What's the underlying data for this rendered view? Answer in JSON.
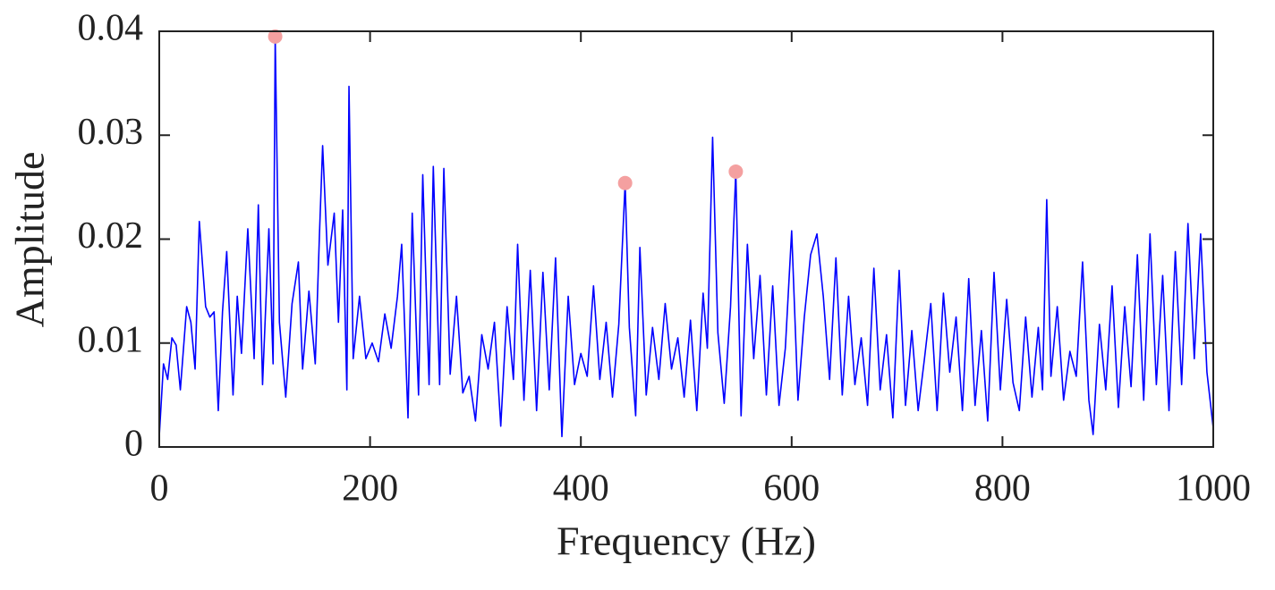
{
  "chart_data": {
    "type": "line",
    "xlabel": "Frequency (Hz)",
    "ylabel": "Amplitude",
    "xlim": [
      0,
      1000
    ],
    "ylim": [
      0,
      0.04
    ],
    "xticks": [
      0,
      200,
      400,
      600,
      800,
      1000
    ],
    "yticks": [
      0,
      0.01,
      0.02,
      0.03,
      0.04
    ],
    "x": [
      0,
      4,
      8,
      12,
      16,
      20,
      26,
      30,
      34,
      38,
      44,
      48,
      52,
      56,
      60,
      64,
      70,
      74,
      78,
      84,
      90,
      94,
      98,
      104,
      108,
      110,
      114,
      120,
      126,
      132,
      136,
      142,
      148,
      152,
      155,
      160,
      166,
      170,
      174,
      178,
      180,
      184,
      190,
      196,
      202,
      208,
      214,
      220,
      226,
      230,
      236,
      240,
      246,
      250,
      256,
      260,
      266,
      270,
      276,
      282,
      288,
      294,
      300,
      306,
      312,
      318,
      324,
      330,
      336,
      340,
      346,
      352,
      358,
      364,
      370,
      376,
      382,
      388,
      394,
      400,
      406,
      412,
      418,
      424,
      430,
      436,
      442,
      446,
      452,
      456,
      462,
      468,
      474,
      480,
      486,
      492,
      498,
      504,
      510,
      516,
      520,
      525,
      530,
      536,
      542,
      547,
      552,
      558,
      564,
      570,
      576,
      582,
      588,
      594,
      600,
      606,
      612,
      618,
      624,
      630,
      636,
      642,
      648,
      654,
      660,
      666,
      672,
      678,
      684,
      690,
      696,
      702,
      708,
      714,
      720,
      726,
      732,
      738,
      744,
      750,
      756,
      762,
      768,
      774,
      780,
      786,
      792,
      798,
      804,
      810,
      816,
      822,
      828,
      834,
      838,
      842,
      846,
      852,
      858,
      864,
      870,
      876,
      882,
      886,
      892,
      898,
      904,
      910,
      916,
      922,
      928,
      934,
      940,
      946,
      952,
      958,
      964,
      970,
      976,
      982,
      988,
      994,
      1000
    ],
    "series": [
      {
        "color": "#0000ff",
        "values": [
          0.001,
          0.008,
          0.0065,
          0.0105,
          0.0098,
          0.0055,
          0.0135,
          0.012,
          0.0075,
          0.0217,
          0.0135,
          0.0125,
          0.013,
          0.0035,
          0.013,
          0.0188,
          0.005,
          0.0145,
          0.009,
          0.021,
          0.0085,
          0.0233,
          0.006,
          0.021,
          0.008,
          0.0395,
          0.012,
          0.0048,
          0.0138,
          0.0178,
          0.0075,
          0.015,
          0.008,
          0.0205,
          0.029,
          0.0175,
          0.0225,
          0.012,
          0.0228,
          0.0055,
          0.0347,
          0.0085,
          0.0145,
          0.0085,
          0.01,
          0.0082,
          0.0128,
          0.0095,
          0.0145,
          0.0195,
          0.0028,
          0.0225,
          0.005,
          0.0262,
          0.006,
          0.027,
          0.006,
          0.0268,
          0.007,
          0.0145,
          0.0052,
          0.0068,
          0.0025,
          0.0108,
          0.0075,
          0.012,
          0.002,
          0.0135,
          0.0065,
          0.0195,
          0.0045,
          0.017,
          0.0035,
          0.0168,
          0.0055,
          0.0182,
          0.001,
          0.0145,
          0.006,
          0.009,
          0.0068,
          0.0155,
          0.0065,
          0.012,
          0.0048,
          0.0118,
          0.0254,
          0.0115,
          0.003,
          0.0192,
          0.005,
          0.0115,
          0.0065,
          0.0138,
          0.0075,
          0.0105,
          0.0048,
          0.0122,
          0.0035,
          0.0148,
          0.0095,
          0.0298,
          0.011,
          0.0042,
          0.0135,
          0.0265,
          0.003,
          0.0195,
          0.0085,
          0.0165,
          0.005,
          0.0155,
          0.004,
          0.0095,
          0.0208,
          0.0045,
          0.0125,
          0.0185,
          0.0205,
          0.0145,
          0.0065,
          0.0182,
          0.005,
          0.0145,
          0.006,
          0.0105,
          0.004,
          0.0172,
          0.0055,
          0.0108,
          0.0028,
          0.017,
          0.004,
          0.0112,
          0.0035,
          0.0085,
          0.0138,
          0.0035,
          0.0148,
          0.0072,
          0.0125,
          0.0035,
          0.0162,
          0.004,
          0.0112,
          0.0025,
          0.0168,
          0.0055,
          0.0142,
          0.0062,
          0.0035,
          0.0125,
          0.0048,
          0.0115,
          0.0055,
          0.0238,
          0.0068,
          0.0135,
          0.0045,
          0.0092,
          0.0068,
          0.0178,
          0.0045,
          0.0012,
          0.0118,
          0.0055,
          0.0155,
          0.0038,
          0.0135,
          0.0058,
          0.0185,
          0.0045,
          0.0205,
          0.006,
          0.0165,
          0.0035,
          0.0188,
          0.006,
          0.0215,
          0.0085,
          0.0205,
          0.0072,
          0.0018
        ]
      }
    ],
    "peaks": {
      "color": "#f4a0a0",
      "x": [
        110,
        442,
        547
      ],
      "values": [
        0.0395,
        0.0254,
        0.0265
      ]
    }
  }
}
